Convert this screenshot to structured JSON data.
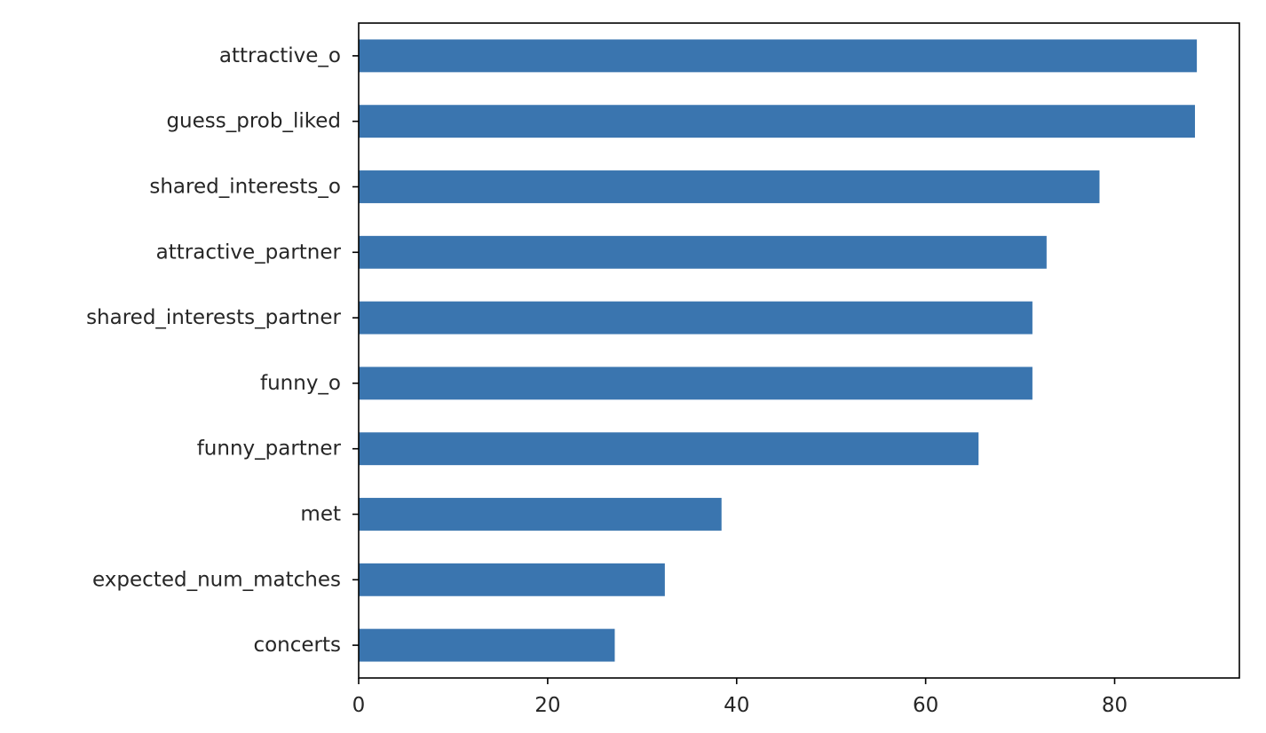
{
  "chart_data": {
    "type": "bar",
    "orientation": "horizontal",
    "categories": [
      "attractive_o",
      "guess_prob_liked",
      "shared_interests_o",
      "attractive_partner",
      "shared_interests_partner",
      "funny_o",
      "funny_partner",
      "met",
      "expected_num_matches",
      "concerts"
    ],
    "values": [
      88.7,
      88.5,
      78.4,
      72.8,
      71.3,
      71.3,
      65.6,
      38.4,
      32.4,
      27.1
    ],
    "title": "",
    "xlabel": "",
    "ylabel": "",
    "xlim": [
      0,
      93.2
    ],
    "xticks": [
      0,
      20,
      40,
      60,
      80
    ],
    "xtick_labels": [
      "0",
      "20",
      "40",
      "60",
      "80"
    ],
    "grid": false,
    "legend": "none",
    "colors": {
      "bar": "#3a75af",
      "axis": "#000000",
      "text": "#262626"
    }
  }
}
